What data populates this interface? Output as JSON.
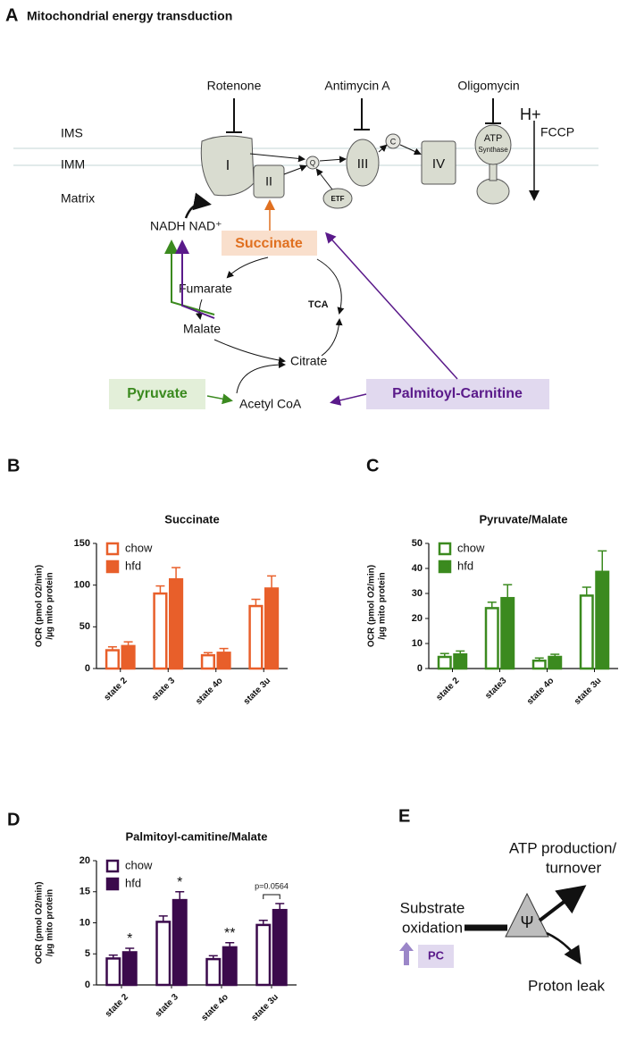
{
  "panel_a": {
    "letter": "A",
    "title": "Mitochondrial energy transduction",
    "compartments": [
      "IMS",
      "IMM",
      "Matrix"
    ],
    "inhibitors": [
      "Rotenone",
      "Antimycin A",
      "Oligomycin"
    ],
    "proton": "H+",
    "uncoupler": "FCCP",
    "complexes": [
      "I",
      "II",
      "Q",
      "III",
      "C",
      "IV"
    ],
    "atp_synthase": [
      "ATP",
      "Synthase"
    ],
    "etf": "ETF",
    "nadh": "NADH NAD⁺",
    "succinate": "Succinate",
    "fumarate": "Fumarate",
    "tca": "TCA",
    "malate": "Malate",
    "citrate": "Citrate",
    "pyruvate": "Pyruvate",
    "acetyl_coa": "Acetyl CoA",
    "palmitoyl": "Palmitoyl-Carnitine"
  },
  "chart_data": [
    {
      "type": "bar",
      "letter": "B",
      "title": "Succinate",
      "ylabel": [
        "OCR (pmol O2/min)",
        "/µg mito protein"
      ],
      "categories": [
        "state 2",
        "state 3",
        "state 4o",
        "state 3u"
      ],
      "series": [
        {
          "name": "chow",
          "color": "#e85f2a",
          "filled": false,
          "values": [
            23,
            91,
            17,
            76
          ],
          "errors": [
            3,
            8,
            2,
            7
          ]
        },
        {
          "name": "hfd",
          "color": "#e85f2a",
          "filled": true,
          "values": [
            28,
            108,
            20,
            97
          ],
          "errors": [
            4,
            13,
            4,
            14
          ]
        }
      ],
      "ylim": [
        0,
        150
      ],
      "yticks": [
        0,
        50,
        100,
        150
      ],
      "legend": "upper left"
    },
    {
      "type": "bar",
      "letter": "C",
      "title": "Pyruvate/Malate",
      "ylabel": [
        "OCR (pmol O2/min)",
        "/µg mito protein"
      ],
      "categories": [
        "state 2",
        "state3",
        "state 4o",
        "state 3u"
      ],
      "series": [
        {
          "name": "chow",
          "color": "#3b8a1f",
          "filled": false,
          "values": [
            5,
            24.5,
            3.5,
            29.5
          ],
          "errors": [
            1,
            2,
            0.7,
            3
          ]
        },
        {
          "name": "hfd",
          "color": "#3b8a1f",
          "filled": true,
          "values": [
            6,
            28.5,
            5,
            39
          ],
          "errors": [
            1,
            5,
            0.7,
            8
          ]
        }
      ],
      "ylim": [
        0,
        50
      ],
      "yticks": [
        0,
        10,
        20,
        30,
        40,
        50
      ],
      "legend": "upper left"
    },
    {
      "type": "bar",
      "letter": "D",
      "title": "Palmitoyl-camitine/Malate",
      "ylabel": [
        "OCR (pmol O2/min)",
        "/µg mito protein"
      ],
      "categories": [
        "state 2",
        "state 3",
        "state 4o",
        "state 3u"
      ],
      "series": [
        {
          "name": "chow",
          "color": "#3b0a4c",
          "filled": false,
          "values": [
            4.4,
            10.3,
            4.3,
            9.8
          ],
          "errors": [
            0.4,
            0.8,
            0.4,
            0.6
          ]
        },
        {
          "name": "hfd",
          "color": "#3b0a4c",
          "filled": true,
          "values": [
            5.4,
            13.8,
            6.2,
            12.2
          ],
          "errors": [
            0.5,
            1.2,
            0.6,
            0.9
          ]
        }
      ],
      "annotations": [
        "*",
        "*",
        "**",
        "p=0.0564"
      ],
      "ylim": [
        0,
        20
      ],
      "yticks": [
        0,
        5,
        10,
        15,
        20
      ],
      "legend": "upper left"
    }
  ],
  "panel_e": {
    "letter": "E",
    "substrate": [
      "Substrate",
      "oxidation"
    ],
    "pc": "PC",
    "psi": "Ψ",
    "atp": [
      "ATP production/",
      "turnover"
    ],
    "leak": "Proton leak"
  }
}
